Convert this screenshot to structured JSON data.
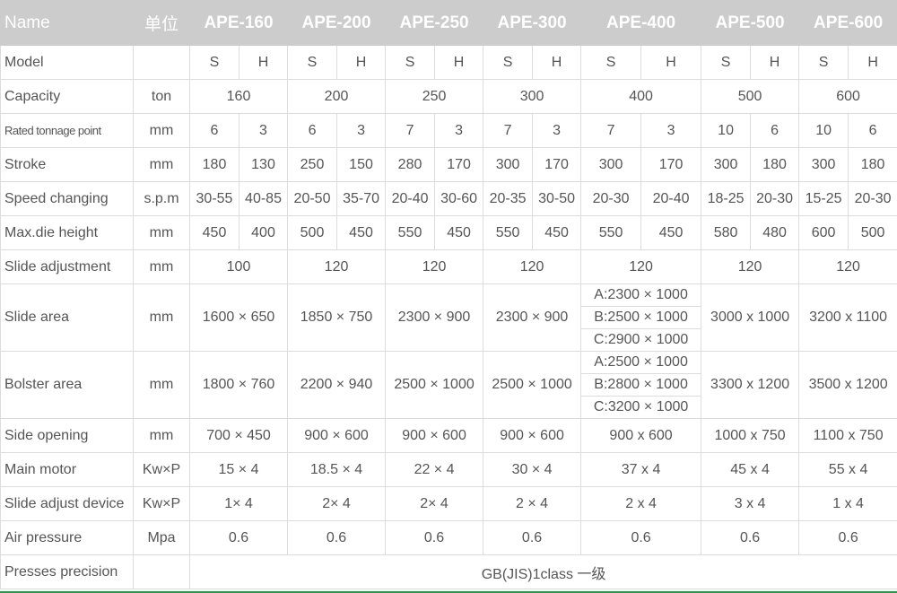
{
  "header": {
    "name": "Name",
    "unit": "单位",
    "models": [
      "APE-160",
      "APE-200",
      "APE-250",
      "APE-300",
      "APE-400",
      "APE-500",
      "APE-600"
    ]
  },
  "colors": {
    "header_bg": "#cccccc",
    "border": "#dcdcdc",
    "text": "#555555",
    "bottom_accent": "#2a9a4a"
  },
  "rows": [
    {
      "label": "Model",
      "unit": "",
      "cells": [
        "S",
        "H",
        "S",
        "H",
        "S",
        "H",
        "S",
        "H",
        "S",
        "H",
        "S",
        "H",
        "S",
        "H"
      ]
    },
    {
      "label": "Capacity",
      "unit": "ton",
      "cells": [
        "160",
        "200",
        "250",
        "300",
        "400",
        "500",
        "600"
      ]
    },
    {
      "label": "Rated tonnage point",
      "unit": "mm",
      "small": true,
      "cells": [
        "6",
        "3",
        "6",
        "3",
        "7",
        "3",
        "7",
        "3",
        "7",
        "3",
        "10",
        "6",
        "10",
        "6"
      ]
    },
    {
      "label": "Stroke",
      "unit": "mm",
      "cells": [
        "180",
        "130",
        "250",
        "150",
        "280",
        "170",
        "300",
        "170",
        "300",
        "170",
        "300",
        "180",
        "300",
        "180"
      ]
    },
    {
      "label": "Speed changing",
      "unit": "s.p.m",
      "cells": [
        "30-55",
        "40-85",
        "20-50",
        "35-70",
        "20-40",
        "30-60",
        "20-35",
        "30-50",
        "20-30",
        "20-40",
        "18-25",
        "20-30",
        "15-25",
        "20-30"
      ]
    },
    {
      "label": "Max.die height",
      "unit": "mm",
      "cells": [
        "450",
        "400",
        "500",
        "450",
        "550",
        "450",
        "550",
        "450",
        "550",
        "450",
        "580",
        "480",
        "600",
        "500"
      ]
    },
    {
      "label": "Slide adjustment",
      "unit": "mm",
      "cells": [
        "100",
        "120",
        "120",
        "120",
        "120",
        "120",
        "120"
      ]
    },
    {
      "label": "Slide area",
      "unit": "mm",
      "cells": [
        "1600 × 650",
        "1850 × 750",
        "2300 × 900",
        "2300 × 900",
        [
          "A:2300 × 1000",
          "B:2500 × 1000",
          "C:2900 × 1000"
        ],
        "3000 x 1000",
        "3200 x 1100"
      ]
    },
    {
      "label": "Bolster area",
      "unit": "mm",
      "cells": [
        "1800 × 760",
        "2200 × 940",
        "2500 × 1000",
        "2500 × 1000",
        [
          "A:2500 × 1000",
          "B:2800 × 1000",
          "C:3200 × 1000"
        ],
        "3300 x 1200",
        "3500 x 1200"
      ]
    },
    {
      "label": "Side opening",
      "unit": "mm",
      "cells": [
        "700 × 450",
        "900 × 600",
        "900 × 600",
        "900 × 600",
        "900 x 600",
        "1000 x 750",
        "1100 x 750"
      ]
    },
    {
      "label": "Main motor",
      "unit": "Kw×P",
      "cells": [
        "15 × 4",
        "18.5 × 4",
        "22 × 4",
        "30 × 4",
        "37 x 4",
        "45 x 4",
        "55 x 4"
      ]
    },
    {
      "label": "Slide adjust device",
      "unit": "Kw×P",
      "cells": [
        "1× 4",
        "2× 4",
        "2× 4",
        "2 × 4",
        "2 x 4",
        "3 x 4",
        "1 x 4"
      ]
    },
    {
      "label": "Air pressure",
      "unit": "Mpa",
      "cells": [
        "0.6",
        "0.6",
        "0.6",
        "0.6",
        "0.6",
        "0.6",
        "0.6"
      ]
    },
    {
      "label": "Presses precision",
      "unit": "",
      "cells": [
        "GB(JIS)1class 一级"
      ]
    }
  ]
}
